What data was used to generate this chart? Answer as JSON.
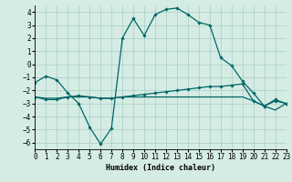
{
  "title": "",
  "xlabel": "Humidex (Indice chaleur)",
  "xlim": [
    0,
    23
  ],
  "ylim": [
    -6.5,
    4.5
  ],
  "yticks": [
    -6,
    -5,
    -4,
    -3,
    -2,
    -1,
    0,
    1,
    2,
    3,
    4
  ],
  "xticks": [
    0,
    1,
    2,
    3,
    4,
    5,
    6,
    7,
    8,
    9,
    10,
    11,
    12,
    13,
    14,
    15,
    16,
    17,
    18,
    19,
    20,
    21,
    22,
    23
  ],
  "bg_color": "#d5ece4",
  "grid_color": "#a8cfc4",
  "line_color": "#006666",
  "line_width": 0.9,
  "marker": "D",
  "marker_size": 1.8,
  "series1": [
    [
      0,
      -1.4
    ],
    [
      1,
      -0.9
    ],
    [
      2,
      -1.2
    ],
    [
      3,
      -2.2
    ],
    [
      4,
      -3.0
    ],
    [
      5,
      -4.8
    ],
    [
      6,
      -6.1
    ],
    [
      7,
      -4.9
    ],
    [
      8,
      2.0
    ],
    [
      9,
      3.5
    ],
    [
      10,
      2.2
    ],
    [
      11,
      3.8
    ],
    [
      12,
      4.2
    ],
    [
      13,
      4.3
    ],
    [
      14,
      3.8
    ],
    [
      15,
      3.2
    ],
    [
      16,
      3.0
    ],
    [
      17,
      0.5
    ],
    [
      18,
      -0.1
    ],
    [
      19,
      -1.3
    ],
    [
      20,
      -2.2
    ],
    [
      21,
      -3.2
    ],
    [
      22,
      -2.7
    ],
    [
      23,
      -3.0
    ]
  ],
  "series2": [
    [
      0,
      -2.5
    ],
    [
      1,
      -2.7
    ],
    [
      2,
      -2.7
    ],
    [
      3,
      -2.5
    ],
    [
      4,
      -2.4
    ],
    [
      5,
      -2.5
    ],
    [
      6,
      -2.6
    ],
    [
      7,
      -2.6
    ],
    [
      8,
      -2.5
    ],
    [
      9,
      -2.4
    ],
    [
      10,
      -2.3
    ],
    [
      11,
      -2.2
    ],
    [
      12,
      -2.1
    ],
    [
      13,
      -2.0
    ],
    [
      14,
      -1.9
    ],
    [
      15,
      -1.8
    ],
    [
      16,
      -1.7
    ],
    [
      17,
      -1.7
    ],
    [
      18,
      -1.6
    ],
    [
      19,
      -1.5
    ],
    [
      20,
      -2.8
    ],
    [
      21,
      -3.2
    ],
    [
      22,
      -2.8
    ],
    [
      23,
      -3.0
    ]
  ],
  "series3": [
    [
      0,
      -2.5
    ],
    [
      1,
      -2.6
    ],
    [
      2,
      -2.6
    ],
    [
      3,
      -2.5
    ],
    [
      4,
      -2.5
    ],
    [
      5,
      -2.5
    ],
    [
      6,
      -2.6
    ],
    [
      7,
      -2.6
    ],
    [
      8,
      -2.5
    ],
    [
      9,
      -2.5
    ],
    [
      10,
      -2.5
    ],
    [
      11,
      -2.5
    ],
    [
      12,
      -2.5
    ],
    [
      13,
      -2.5
    ],
    [
      14,
      -2.5
    ],
    [
      15,
      -2.5
    ],
    [
      16,
      -2.5
    ],
    [
      17,
      -2.5
    ],
    [
      18,
      -2.5
    ],
    [
      19,
      -2.5
    ],
    [
      20,
      -2.8
    ],
    [
      21,
      -3.2
    ],
    [
      22,
      -3.5
    ],
    [
      23,
      -3.0
    ]
  ]
}
